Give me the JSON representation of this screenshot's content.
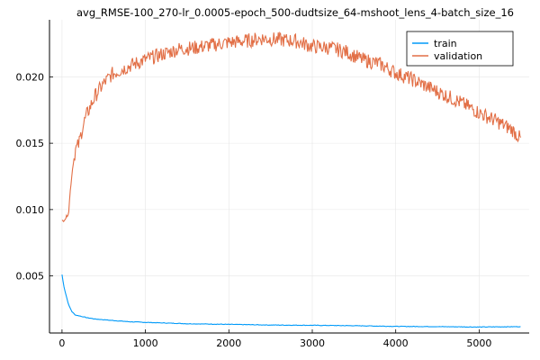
{
  "chart_data": {
    "type": "line",
    "title": "avg_RMSE-100_270-lr_0.0005-epoch_500-dudtsize_64-mshoot_lens_4-batch_size_16",
    "xlabel": "",
    "ylabel": "",
    "xlim": [
      -150,
      5600
    ],
    "ylim": [
      0.0007,
      0.0243
    ],
    "xticks": [
      0,
      1000,
      2000,
      3000,
      4000,
      5000
    ],
    "xtick_labels": [
      "0",
      "1000",
      "2000",
      "3000",
      "4000",
      "5000"
    ],
    "yticks": [
      0.005,
      0.01,
      0.015,
      0.02
    ],
    "ytick_labels": [
      "0.005",
      "0.010",
      "0.015",
      "0.020"
    ],
    "grid": true,
    "legend_position": "top-right",
    "series": [
      {
        "name": "train",
        "color": "#009af9",
        "x": [
          0,
          20,
          50,
          80,
          120,
          160,
          200,
          300,
          400,
          600,
          800,
          1000,
          1500,
          2000,
          2500,
          3000,
          3500,
          4000,
          4500,
          5000,
          5500
        ],
        "y": [
          0.0051,
          0.0043,
          0.0035,
          0.0028,
          0.0023,
          0.00205,
          0.002,
          0.00185,
          0.00175,
          0.00165,
          0.00155,
          0.0015,
          0.0014,
          0.00135,
          0.0013,
          0.00128,
          0.00125,
          0.0012,
          0.00118,
          0.00115,
          0.00118
        ]
      },
      {
        "name": "validation",
        "color": "#e26f46",
        "x": [
          0,
          50,
          80,
          100,
          130,
          160,
          200,
          250,
          300,
          350,
          400,
          500,
          600,
          700,
          800,
          1000,
          1200,
          1400,
          1600,
          1800,
          2000,
          2200,
          2400,
          2600,
          2800,
          3000,
          3200,
          3400,
          3600,
          3800,
          4000,
          4200,
          4400,
          4600,
          4800,
          5000,
          5200,
          5400,
          5500
        ],
        "y": [
          0.0091,
          0.0094,
          0.0098,
          0.0115,
          0.0133,
          0.0145,
          0.0149,
          0.0163,
          0.0172,
          0.0179,
          0.0186,
          0.0195,
          0.0202,
          0.0205,
          0.0208,
          0.0213,
          0.0217,
          0.0221,
          0.0222,
          0.0224,
          0.0226,
          0.0227,
          0.0229,
          0.0228,
          0.0227,
          0.0223,
          0.0222,
          0.0219,
          0.0213,
          0.021,
          0.0203,
          0.0198,
          0.0192,
          0.0186,
          0.018,
          0.0173,
          0.0167,
          0.016,
          0.0153
        ]
      }
    ]
  }
}
